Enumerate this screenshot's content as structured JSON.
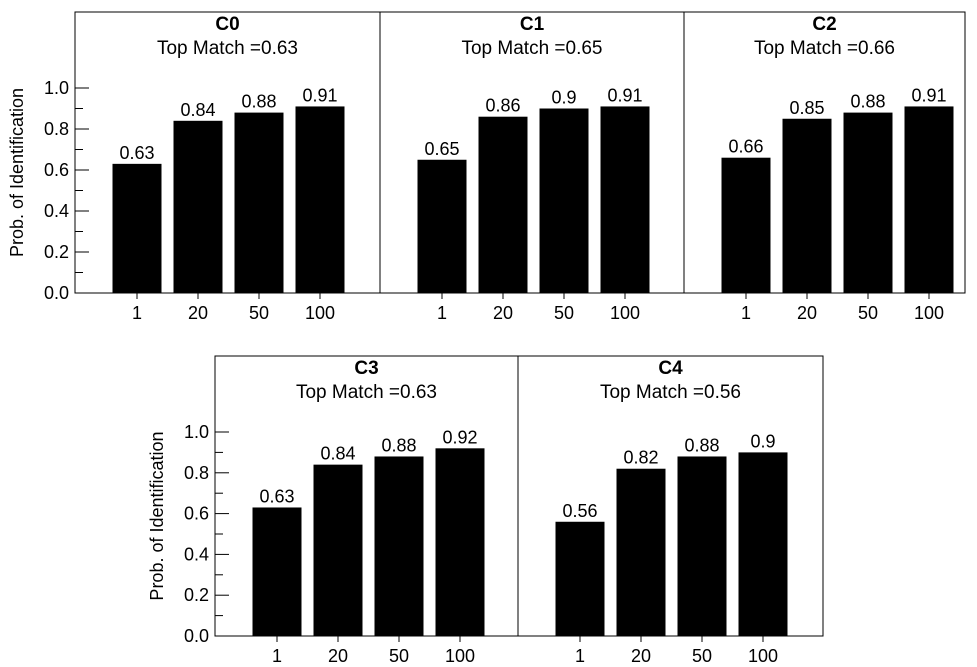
{
  "colors": {
    "bar": "#000000",
    "axis": "#000000",
    "background": "#ffffff"
  },
  "chart_data": [
    {
      "type": "bar",
      "title": "C0",
      "subtitle": "Top Match =0.63",
      "ylabel": "Prob. of Identification",
      "xlabel": "",
      "categories": [
        "1",
        "20",
        "50",
        "100"
      ],
      "values": [
        0.63,
        0.84,
        0.88,
        0.91
      ],
      "data_labels": [
        "0.63",
        "0.84",
        "0.88",
        "0.91"
      ],
      "yticks": [
        "0.0",
        "0.2",
        "0.4",
        "0.6",
        "0.8",
        "1.0"
      ],
      "ylim": [
        0,
        1.0
      ],
      "grid": false
    },
    {
      "type": "bar",
      "title": "C1",
      "subtitle": "Top Match =0.65",
      "ylabel": "",
      "xlabel": "",
      "categories": [
        "1",
        "20",
        "50",
        "100"
      ],
      "values": [
        0.65,
        0.86,
        0.9,
        0.91
      ],
      "data_labels": [
        "0.65",
        "0.86",
        "0.9",
        "0.91"
      ],
      "ylim": [
        0,
        1.0
      ],
      "grid": false
    },
    {
      "type": "bar",
      "title": "C2",
      "subtitle": "Top Match =0.66",
      "ylabel": "",
      "xlabel": "",
      "categories": [
        "1",
        "20",
        "50",
        "100"
      ],
      "values": [
        0.66,
        0.85,
        0.88,
        0.91
      ],
      "data_labels": [
        "0.66",
        "0.85",
        "0.88",
        "0.91"
      ],
      "ylim": [
        0,
        1.0
      ],
      "grid": false
    },
    {
      "type": "bar",
      "title": "C3",
      "subtitle": "Top Match =0.63",
      "ylabel": "Prob. of Identification",
      "xlabel": "",
      "categories": [
        "1",
        "20",
        "50",
        "100"
      ],
      "values": [
        0.63,
        0.84,
        0.88,
        0.92
      ],
      "data_labels": [
        "0.63",
        "0.84",
        "0.88",
        "0.92"
      ],
      "yticks": [
        "0.0",
        "0.2",
        "0.4",
        "0.6",
        "0.8",
        "1.0"
      ],
      "ylim": [
        0,
        1.0
      ],
      "grid": false
    },
    {
      "type": "bar",
      "title": "C4",
      "subtitle": "Top Match =0.56",
      "ylabel": "",
      "xlabel": "",
      "categories": [
        "1",
        "20",
        "50",
        "100"
      ],
      "values": [
        0.56,
        0.82,
        0.88,
        0.9
      ],
      "data_labels": [
        "0.56",
        "0.82",
        "0.88",
        "0.9"
      ],
      "ylim": [
        0,
        1.0
      ],
      "grid": false
    }
  ]
}
